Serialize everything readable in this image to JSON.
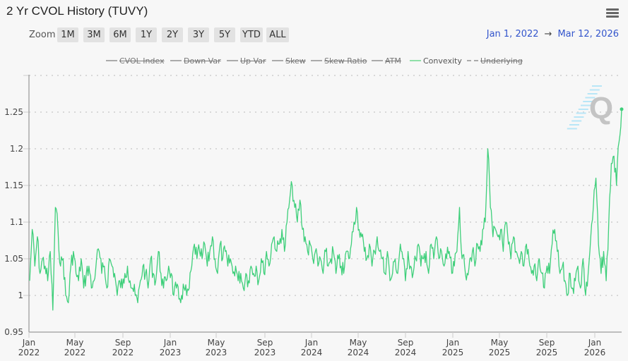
{
  "header": {
    "title": "2 Yr CVOL History (TUVY)",
    "menu_icon": "hamburger-menu-icon"
  },
  "zoom": {
    "label": "Zoom",
    "buttons": [
      "1M",
      "3M",
      "6M",
      "1Y",
      "2Y",
      "3Y",
      "5Y",
      "YTD",
      "ALL"
    ]
  },
  "range": {
    "from": "Jan 1, 2022",
    "arrow": "→",
    "to": "Mar 12, 2026"
  },
  "legend": [
    {
      "label": "CVOL Index",
      "visible": false,
      "style": "solid"
    },
    {
      "label": "Down Var",
      "visible": false,
      "style": "solid"
    },
    {
      "label": "Up Var",
      "visible": false,
      "style": "solid"
    },
    {
      "label": "Skew",
      "visible": false,
      "style": "solid"
    },
    {
      "label": "Skew Ratio",
      "visible": false,
      "style": "solid"
    },
    {
      "label": "ATM",
      "visible": false,
      "style": "solid"
    },
    {
      "label": "Convexity",
      "visible": true,
      "style": "solid"
    },
    {
      "label": "Underlying",
      "visible": false,
      "style": "dashed"
    }
  ],
  "colors": {
    "series": "#3ecf7a",
    "grid": "#d8d8d8",
    "axis": "#aaaaaa",
    "range_text": "#3355cc",
    "background": "#f7f7f7"
  },
  "chart_data": {
    "type": "line",
    "title": "2 Yr CVOL History (TUVY)",
    "xlabel": "",
    "ylabel": "",
    "ylim": [
      0.95,
      1.3
    ],
    "yticks": [
      0.95,
      1.0,
      1.05,
      1.1,
      1.15,
      1.2,
      1.25
    ],
    "ytick_labels": [
      "0.95",
      "1",
      "1.05",
      "1.1",
      "1.15",
      "1.2",
      "1.25"
    ],
    "xticks": [
      "Jan 2022",
      "May 2022",
      "Sep 2022",
      "Jan 2023",
      "May 2023",
      "Sep 2023",
      "Jan 2024",
      "May 2024",
      "Sep 2024",
      "Jan 2025",
      "May 2025",
      "Sep 2025",
      "Jan 2026"
    ],
    "grid": true,
    "legend_position": "top",
    "series": [
      {
        "name": "Convexity",
        "x_start": "2022-01-03",
        "x_end": "2026-03-12",
        "frequency": "weekly (approx.)",
        "values": [
          1.02,
          1.09,
          1.04,
          1.08,
          1.03,
          1.05,
          1.04,
          1.02,
          1.06,
          0.98,
          1.12,
          1.09,
          1.04,
          1.05,
          1.0,
          0.99,
          1.04,
          1.06,
          1.03,
          1.02,
          1.05,
          1.01,
          1.03,
          1.04,
          1.01,
          1.02,
          1.05,
          1.06,
          1.03,
          1.04,
          1.01,
          1.05,
          1.04,
          1.03,
          1.0,
          1.02,
          1.01,
          1.03,
          1.04,
          1.02,
          1.01,
          1.0,
          0.99,
          1.02,
          1.04,
          1.03,
          1.01,
          1.05,
          1.03,
          1.02,
          1.06,
          1.03,
          1.01,
          1.02,
          1.04,
          1.03,
          1.0,
          1.01,
          0.995,
          1.0,
          1.01,
          1.0,
          1.01,
          1.04,
          1.07,
          1.05,
          1.06,
          1.05,
          1.07,
          1.04,
          1.06,
          1.08,
          1.05,
          1.03,
          1.07,
          1.05,
          1.06,
          1.04,
          1.05,
          1.03,
          1.04,
          1.02,
          1.03,
          1.01,
          1.03,
          1.02,
          1.04,
          1.03,
          1.04,
          1.02,
          1.05,
          1.03,
          1.06,
          1.04,
          1.07,
          1.08,
          1.06,
          1.07,
          1.09,
          1.06,
          1.1,
          1.13,
          1.15,
          1.12,
          1.1,
          1.13,
          1.09,
          1.08,
          1.06,
          1.07,
          1.05,
          1.06,
          1.04,
          1.05,
          1.03,
          1.06,
          1.04,
          1.05,
          1.06,
          1.03,
          1.05,
          1.04,
          1.03,
          1.06,
          1.05,
          1.07,
          1.1,
          1.12,
          1.09,
          1.08,
          1.06,
          1.05,
          1.07,
          1.04,
          1.06,
          1.08,
          1.06,
          1.05,
          1.03,
          1.06,
          1.02,
          1.03,
          1.05,
          1.03,
          1.07,
          1.05,
          1.02,
          1.06,
          1.04,
          1.03,
          1.05,
          1.07,
          1.04,
          1.05,
          1.06,
          1.03,
          1.07,
          1.05,
          1.08,
          1.05,
          1.06,
          1.04,
          1.05,
          1.06,
          1.03,
          1.04,
          1.06,
          1.12,
          1.05,
          1.04,
          1.03,
          1.05,
          1.06,
          1.04,
          1.07,
          1.06,
          1.09,
          1.1,
          1.2,
          1.12,
          1.08,
          1.09,
          1.08,
          1.09,
          1.06,
          1.1,
          1.07,
          1.05,
          1.08,
          1.06,
          1.05,
          1.06,
          1.04,
          1.07,
          1.05,
          1.03,
          1.04,
          1.02,
          1.05,
          1.03,
          1.01,
          1.04,
          1.03,
          1.07,
          1.09,
          1.06,
          1.03,
          1.04,
          1.02,
          1.0,
          1.03,
          1.01,
          1.02,
          1.04,
          1.01,
          1.05,
          1.0,
          1.03,
          1.08,
          1.12,
          1.16,
          1.07,
          1.03,
          1.06,
          1.02,
          1.1,
          1.18,
          1.19,
          1.15,
          1.21,
          1.254
        ]
      }
    ]
  }
}
